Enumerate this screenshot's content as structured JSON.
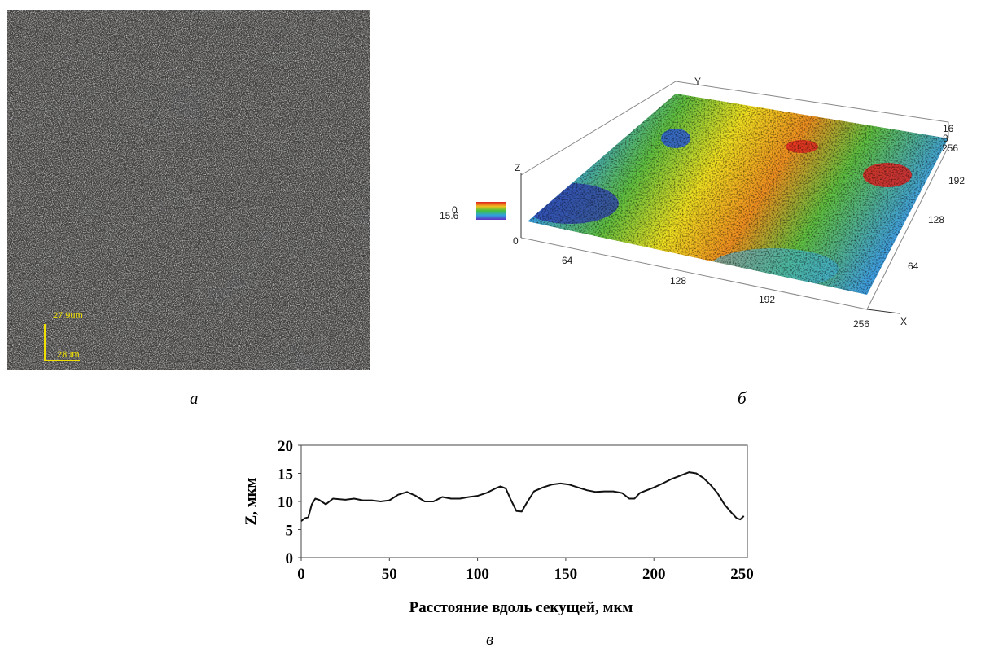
{
  "captions": [
    "а",
    "б",
    "в"
  ],
  "panel_a": {
    "scale_y": "27.9um",
    "scale_x": "28um"
  },
  "panel_b": {
    "axis_x": "X",
    "axis_y": "Y",
    "axis_z": "Z",
    "origin": "0",
    "x_ticks": [
      "64",
      "128",
      "192",
      "256"
    ],
    "y_ticks": [
      "64",
      "128",
      "192",
      "256"
    ],
    "z_ticks": [
      "8",
      "16"
    ],
    "colorbar": [
      "15.6",
      "0"
    ]
  },
  "chart_data": {
    "type": "line",
    "xlabel": "Расстояние вдоль секущей, мкм",
    "ylabel": "Z, мкм",
    "color": "#111111",
    "x": [
      0,
      2,
      4,
      6,
      8,
      10,
      14,
      18,
      25,
      30,
      35,
      40,
      45,
      50,
      55,
      60,
      65,
      70,
      75,
      80,
      85,
      90,
      95,
      100,
      105,
      110,
      113,
      116,
      119,
      122,
      125,
      128,
      132,
      137,
      142,
      147,
      152,
      157,
      162,
      167,
      172,
      177,
      182,
      186,
      189,
      192,
      196,
      200,
      205,
      210,
      215,
      220,
      224,
      228,
      232,
      236,
      240,
      244,
      247,
      249,
      251
    ],
    "values": [
      6.5,
      7,
      7.2,
      9.5,
      10.5,
      10.3,
      9.5,
      10.5,
      10.3,
      10.5,
      10.2,
      10.2,
      10,
      10.2,
      11.2,
      11.7,
      11,
      10,
      10,
      10.8,
      10.5,
      10.5,
      10.8,
      11,
      11.5,
      12.3,
      12.7,
      12.3,
      10.2,
      8.3,
      8.2,
      9.8,
      11.8,
      12.5,
      13,
      13.2,
      13,
      12.5,
      12,
      11.7,
      11.8,
      11.8,
      11.5,
      10.5,
      10.5,
      11.5,
      12,
      12.5,
      13.2,
      14,
      14.6,
      15.2,
      15,
      14.2,
      13,
      11.5,
      9.5,
      8,
      7,
      6.8,
      7.4
    ],
    "xlim": [
      0,
      253
    ],
    "ylim": [
      0,
      20
    ],
    "xticks": [
      0,
      50,
      100,
      150,
      200,
      250
    ],
    "yticks": [
      0,
      5,
      10,
      15,
      20
    ]
  }
}
